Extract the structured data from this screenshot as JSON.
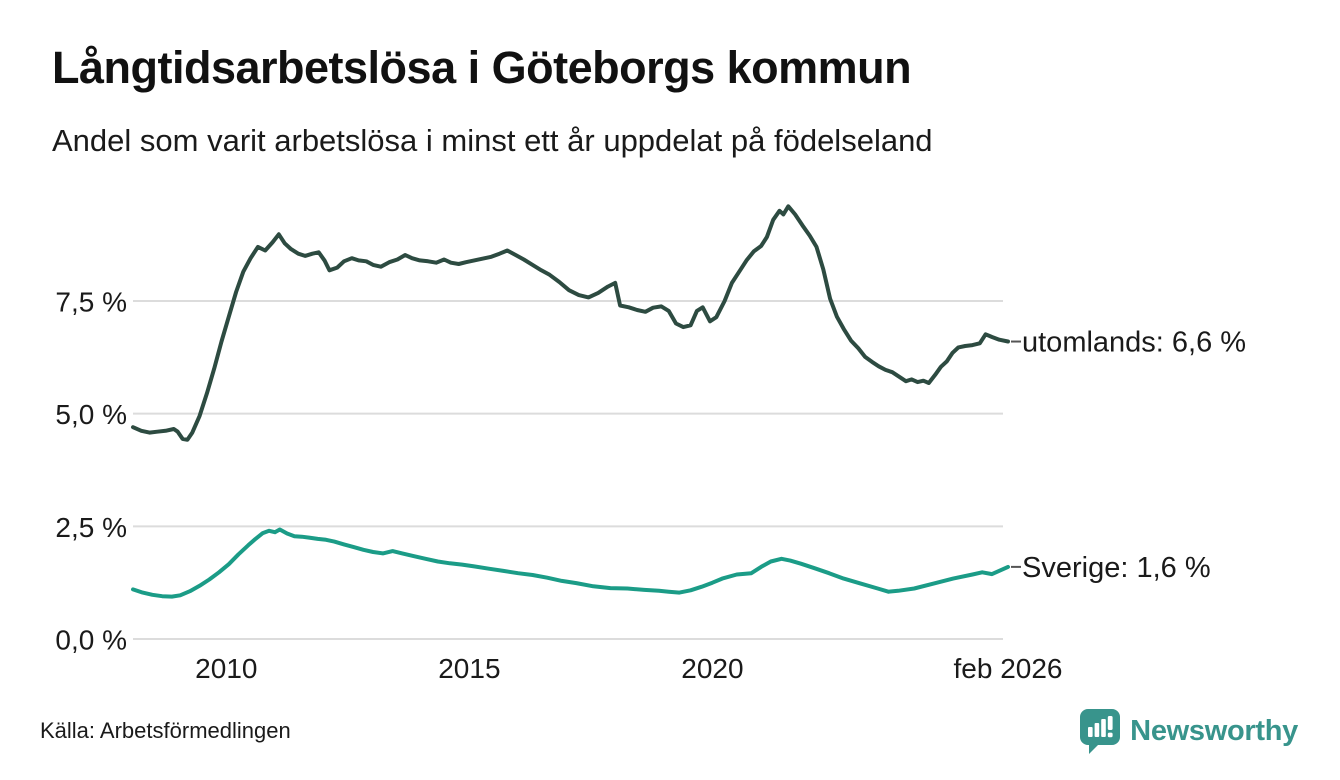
{
  "header": {
    "title": "Långtidsarbetslösa i Göteborgs kommun",
    "subtitle": "Andel som varit arbetslösa i minst ett år uppdelat på födelseland"
  },
  "footer": {
    "source": "Källa: Arbetsförmedlingen",
    "brand_name": "Newsworthy",
    "brand_icon": "newsworthy-speech-bubble-bar-chart-icon"
  },
  "colors": {
    "title": "#111111",
    "text": "#1a1a1a",
    "grid": "#dcdcdc",
    "end_dash": "#555555",
    "brand_teal": "#38948c",
    "series_utomlands": "#2d4b41",
    "series_sverige": "#1b9c87"
  },
  "chart_data": {
    "type": "line",
    "title": "Långtidsarbetslösa i Göteborgs kommun",
    "subtitle": "Andel som varit arbetslösa i minst ett år uppdelat på födelseland",
    "grid": true,
    "legend_position": "right-inline-labels",
    "x_axis": {
      "range": [
        2008.08,
        2026.08
      ],
      "ticks": [
        {
          "label": "2010",
          "value": 2010
        },
        {
          "label": "2015",
          "value": 2015
        },
        {
          "label": "2020",
          "value": 2020
        },
        {
          "label": "feb 2026",
          "value": 2026.08
        }
      ]
    },
    "y_axis": {
      "unit": "%",
      "range": [
        0,
        10
      ],
      "ticks": [
        {
          "label": "0,0 %",
          "value": 0
        },
        {
          "label": "2,5 %",
          "value": 2.5
        },
        {
          "label": "5,0 %",
          "value": 5
        },
        {
          "label": "7,5 %",
          "value": 7.5
        }
      ]
    },
    "series": [
      {
        "name": "utomlands",
        "label": "utomlands: 6,6 %",
        "last_value_text": "6,6 %",
        "color": "#2d4b41",
        "points": [
          [
            2008.08,
            4.7
          ],
          [
            2008.25,
            4.62
          ],
          [
            2008.42,
            4.58
          ],
          [
            2008.58,
            4.6
          ],
          [
            2008.75,
            4.62
          ],
          [
            2008.92,
            4.66
          ],
          [
            2009.0,
            4.6
          ],
          [
            2009.1,
            4.44
          ],
          [
            2009.2,
            4.42
          ],
          [
            2009.3,
            4.58
          ],
          [
            2009.45,
            4.95
          ],
          [
            2009.6,
            5.45
          ],
          [
            2009.75,
            6.0
          ],
          [
            2009.9,
            6.6
          ],
          [
            2010.05,
            7.15
          ],
          [
            2010.2,
            7.7
          ],
          [
            2010.35,
            8.15
          ],
          [
            2010.5,
            8.45
          ],
          [
            2010.65,
            8.7
          ],
          [
            2010.8,
            8.62
          ],
          [
            2010.95,
            8.8
          ],
          [
            2011.08,
            8.98
          ],
          [
            2011.2,
            8.78
          ],
          [
            2011.33,
            8.65
          ],
          [
            2011.48,
            8.55
          ],
          [
            2011.62,
            8.5
          ],
          [
            2011.77,
            8.55
          ],
          [
            2011.9,
            8.58
          ],
          [
            2012.02,
            8.4
          ],
          [
            2012.12,
            8.18
          ],
          [
            2012.28,
            8.24
          ],
          [
            2012.42,
            8.38
          ],
          [
            2012.58,
            8.45
          ],
          [
            2012.72,
            8.4
          ],
          [
            2012.88,
            8.38
          ],
          [
            2013.02,
            8.3
          ],
          [
            2013.18,
            8.26
          ],
          [
            2013.35,
            8.36
          ],
          [
            2013.52,
            8.42
          ],
          [
            2013.68,
            8.52
          ],
          [
            2013.82,
            8.45
          ],
          [
            2013.98,
            8.4
          ],
          [
            2014.15,
            8.38
          ],
          [
            2014.32,
            8.35
          ],
          [
            2014.48,
            8.42
          ],
          [
            2014.62,
            8.35
          ],
          [
            2014.78,
            8.32
          ],
          [
            2014.93,
            8.36
          ],
          [
            2015.1,
            8.4
          ],
          [
            2015.28,
            8.44
          ],
          [
            2015.45,
            8.48
          ],
          [
            2015.62,
            8.55
          ],
          [
            2015.78,
            8.62
          ],
          [
            2015.95,
            8.52
          ],
          [
            2016.12,
            8.42
          ],
          [
            2016.3,
            8.3
          ],
          [
            2016.48,
            8.18
          ],
          [
            2016.65,
            8.08
          ],
          [
            2016.85,
            7.92
          ],
          [
            2017.05,
            7.74
          ],
          [
            2017.25,
            7.63
          ],
          [
            2017.45,
            7.58
          ],
          [
            2017.65,
            7.68
          ],
          [
            2017.85,
            7.82
          ],
          [
            2018.0,
            7.9
          ],
          [
            2018.1,
            7.4
          ],
          [
            2018.28,
            7.36
          ],
          [
            2018.45,
            7.3
          ],
          [
            2018.62,
            7.26
          ],
          [
            2018.78,
            7.35
          ],
          [
            2018.95,
            7.38
          ],
          [
            2019.1,
            7.28
          ],
          [
            2019.25,
            7.0
          ],
          [
            2019.4,
            6.92
          ],
          [
            2019.55,
            6.96
          ],
          [
            2019.68,
            7.28
          ],
          [
            2019.8,
            7.36
          ],
          [
            2019.95,
            7.05
          ],
          [
            2020.08,
            7.14
          ],
          [
            2020.25,
            7.5
          ],
          [
            2020.4,
            7.9
          ],
          [
            2020.55,
            8.15
          ],
          [
            2020.7,
            8.4
          ],
          [
            2020.85,
            8.6
          ],
          [
            2021.0,
            8.72
          ],
          [
            2021.12,
            8.92
          ],
          [
            2021.25,
            9.3
          ],
          [
            2021.38,
            9.5
          ],
          [
            2021.46,
            9.42
          ],
          [
            2021.56,
            9.6
          ],
          [
            2021.7,
            9.42
          ],
          [
            2021.85,
            9.18
          ],
          [
            2022.0,
            8.95
          ],
          [
            2022.14,
            8.7
          ],
          [
            2022.28,
            8.2
          ],
          [
            2022.42,
            7.55
          ],
          [
            2022.56,
            7.15
          ],
          [
            2022.7,
            6.88
          ],
          [
            2022.85,
            6.62
          ],
          [
            2023.0,
            6.45
          ],
          [
            2023.14,
            6.26
          ],
          [
            2023.28,
            6.15
          ],
          [
            2023.42,
            6.05
          ],
          [
            2023.56,
            5.97
          ],
          [
            2023.7,
            5.92
          ],
          [
            2023.84,
            5.82
          ],
          [
            2023.98,
            5.72
          ],
          [
            2024.1,
            5.76
          ],
          [
            2024.22,
            5.7
          ],
          [
            2024.34,
            5.73
          ],
          [
            2024.45,
            5.68
          ],
          [
            2024.58,
            5.86
          ],
          [
            2024.7,
            6.04
          ],
          [
            2024.82,
            6.16
          ],
          [
            2024.94,
            6.35
          ],
          [
            2025.06,
            6.47
          ],
          [
            2025.2,
            6.5
          ],
          [
            2025.35,
            6.52
          ],
          [
            2025.5,
            6.56
          ],
          [
            2025.62,
            6.76
          ],
          [
            2025.75,
            6.7
          ],
          [
            2025.9,
            6.64
          ],
          [
            2026.08,
            6.6
          ]
        ]
      },
      {
        "name": "sverige",
        "label": "Sverige: 1,6 %",
        "last_value_text": "1,6 %",
        "color": "#1b9c87",
        "points": [
          [
            2008.08,
            1.1
          ],
          [
            2008.28,
            1.03
          ],
          [
            2008.48,
            0.98
          ],
          [
            2008.68,
            0.95
          ],
          [
            2008.88,
            0.94
          ],
          [
            2009.05,
            0.97
          ],
          [
            2009.25,
            1.06
          ],
          [
            2009.45,
            1.18
          ],
          [
            2009.65,
            1.32
          ],
          [
            2009.85,
            1.48
          ],
          [
            2010.05,
            1.66
          ],
          [
            2010.25,
            1.88
          ],
          [
            2010.45,
            2.08
          ],
          [
            2010.6,
            2.22
          ],
          [
            2010.75,
            2.35
          ],
          [
            2010.88,
            2.4
          ],
          [
            2011.0,
            2.37
          ],
          [
            2011.1,
            2.43
          ],
          [
            2011.25,
            2.34
          ],
          [
            2011.4,
            2.28
          ],
          [
            2011.55,
            2.27
          ],
          [
            2011.7,
            2.25
          ],
          [
            2011.88,
            2.22
          ],
          [
            2012.05,
            2.2
          ],
          [
            2012.22,
            2.16
          ],
          [
            2012.42,
            2.1
          ],
          [
            2012.62,
            2.04
          ],
          [
            2012.82,
            1.98
          ],
          [
            2013.02,
            1.93
          ],
          [
            2013.22,
            1.9
          ],
          [
            2013.42,
            1.95
          ],
          [
            2013.62,
            1.9
          ],
          [
            2013.85,
            1.84
          ],
          [
            2014.1,
            1.78
          ],
          [
            2014.35,
            1.72
          ],
          [
            2014.6,
            1.68
          ],
          [
            2014.85,
            1.65
          ],
          [
            2015.1,
            1.61
          ],
          [
            2015.4,
            1.56
          ],
          [
            2015.7,
            1.51
          ],
          [
            2016.0,
            1.46
          ],
          [
            2016.3,
            1.42
          ],
          [
            2016.6,
            1.36
          ],
          [
            2016.9,
            1.29
          ],
          [
            2017.2,
            1.24
          ],
          [
            2017.55,
            1.17
          ],
          [
            2017.9,
            1.13
          ],
          [
            2018.25,
            1.12
          ],
          [
            2018.6,
            1.09
          ],
          [
            2018.9,
            1.07
          ],
          [
            2019.1,
            1.05
          ],
          [
            2019.32,
            1.03
          ],
          [
            2019.55,
            1.08
          ],
          [
            2019.78,
            1.16
          ],
          [
            2020.0,
            1.25
          ],
          [
            2020.2,
            1.34
          ],
          [
            2020.5,
            1.43
          ],
          [
            2020.8,
            1.46
          ],
          [
            2021.0,
            1.6
          ],
          [
            2021.2,
            1.72
          ],
          [
            2021.42,
            1.78
          ],
          [
            2021.6,
            1.74
          ],
          [
            2021.82,
            1.67
          ],
          [
            2022.1,
            1.57
          ],
          [
            2022.4,
            1.46
          ],
          [
            2022.7,
            1.34
          ],
          [
            2023.05,
            1.23
          ],
          [
            2023.4,
            1.12
          ],
          [
            2023.62,
            1.05
          ],
          [
            2023.82,
            1.07
          ],
          [
            2024.15,
            1.12
          ],
          [
            2024.55,
            1.23
          ],
          [
            2024.95,
            1.34
          ],
          [
            2025.35,
            1.43
          ],
          [
            2025.55,
            1.48
          ],
          [
            2025.75,
            1.44
          ],
          [
            2026.08,
            1.6
          ]
        ]
      }
    ]
  }
}
